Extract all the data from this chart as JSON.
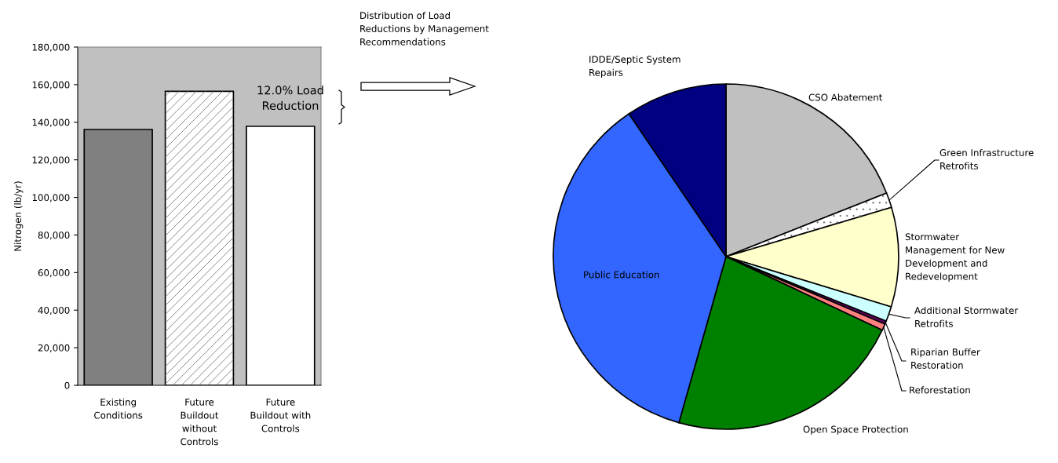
{
  "chart_data": [
    {
      "type": "bar",
      "ylabel": "Nitrogen (lb/yr)",
      "categories": [
        "Existing\nConditions",
        "Future\nBuildout\nwithout\nControls",
        "Future\nBuildout with\nControls"
      ],
      "values": [
        136150,
        156480,
        137820
      ],
      "colors": [
        "#808080",
        "#ffffff",
        "#ffffff"
      ],
      "ylim": [
        0,
        180000
      ],
      "yticks": [
        {
          "value": 0,
          "label": "0"
        },
        {
          "value": 20000,
          "label": "20,000"
        },
        {
          "value": 40000,
          "label": "40,000"
        },
        {
          "value": 60000,
          "label": "60,000"
        },
        {
          "value": 80000,
          "label": "80,000"
        },
        {
          "value": 100000,
          "label": "100,000"
        },
        {
          "value": 120000,
          "label": "120,000"
        },
        {
          "value": 140000,
          "label": "140,000"
        },
        {
          "value": 160000,
          "label": "160,000"
        },
        {
          "value": 180000,
          "label": "180,000"
        }
      ],
      "annotations": [
        "12.0% Load\nReduction"
      ],
      "grid": false,
      "legend": false
    },
    {
      "type": "pie",
      "title": "Distribution of Load\nReductions by Management\nRecommendations",
      "categories": [
        "CSO Abatement",
        "Green Infrastructure\nRetrofits",
        "Stormwater\nManagement for New\nDevelopment and\nRedevelopment",
        "Additional Stormwater\nRetrofits",
        "Riparian Buffer\nRestoration",
        "Reforestation",
        "Open Space Protection",
        "Public Education",
        "IDDE/Septic System\nRepairs"
      ],
      "values": [
        19.0,
        1.4,
        9.3,
        1.4,
        0.3,
        0.6,
        22.4,
        36.1,
        9.5
      ],
      "colors": [
        "#c0c0c0",
        "#ffffff",
        "#ffffcc",
        "#ccffff",
        "#660066",
        "#ff8080",
        "#008000",
        "#3366ff",
        "#000080"
      ],
      "legend": false
    }
  ]
}
